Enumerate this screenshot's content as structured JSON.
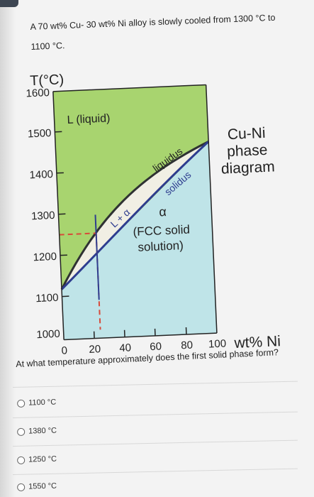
{
  "question": {
    "stem_line1": "A 70 wt% Cu- 30 wt% Ni alloy is slowly cooled from 1300 °C to",
    "stem_line2": "1100 °C.",
    "prompt": "At what temperature approximately does the first solid phase form?"
  },
  "options": [
    {
      "label": "1100 °C"
    },
    {
      "label": "1380 °C"
    },
    {
      "label": "1250 °C"
    },
    {
      "label": "1550 °C"
    }
  ],
  "diagram": {
    "y_axis_title": "T(°C)",
    "y_ticks": [
      "1600",
      "1500",
      "1400",
      "1300",
      "1200",
      "1100",
      "1000"
    ],
    "x_ticks": [
      "0",
      "20",
      "40",
      "60",
      "80",
      "100"
    ],
    "x_axis_title": "wt% Ni",
    "region_liquid": "L (liquid)",
    "region_two_phase": "L + α",
    "label_liquidus": "liquidus",
    "label_solidus": "solidus",
    "region_solid_symbol": "α",
    "region_solid_line1": "(FCC solid",
    "region_solid_line2": "solution)",
    "side_title_line1": "Cu-Ni",
    "side_title_line2": "phase",
    "side_title_line3": "diagram",
    "colors": {
      "liquid": "#a8d46f",
      "solid": "#bfe4e8",
      "two_phase": "#f1efe4",
      "liquidus_line": "#2f3233",
      "solidus_line": "#2e3d8f",
      "dashed_marker": "#d84a3a"
    }
  }
}
